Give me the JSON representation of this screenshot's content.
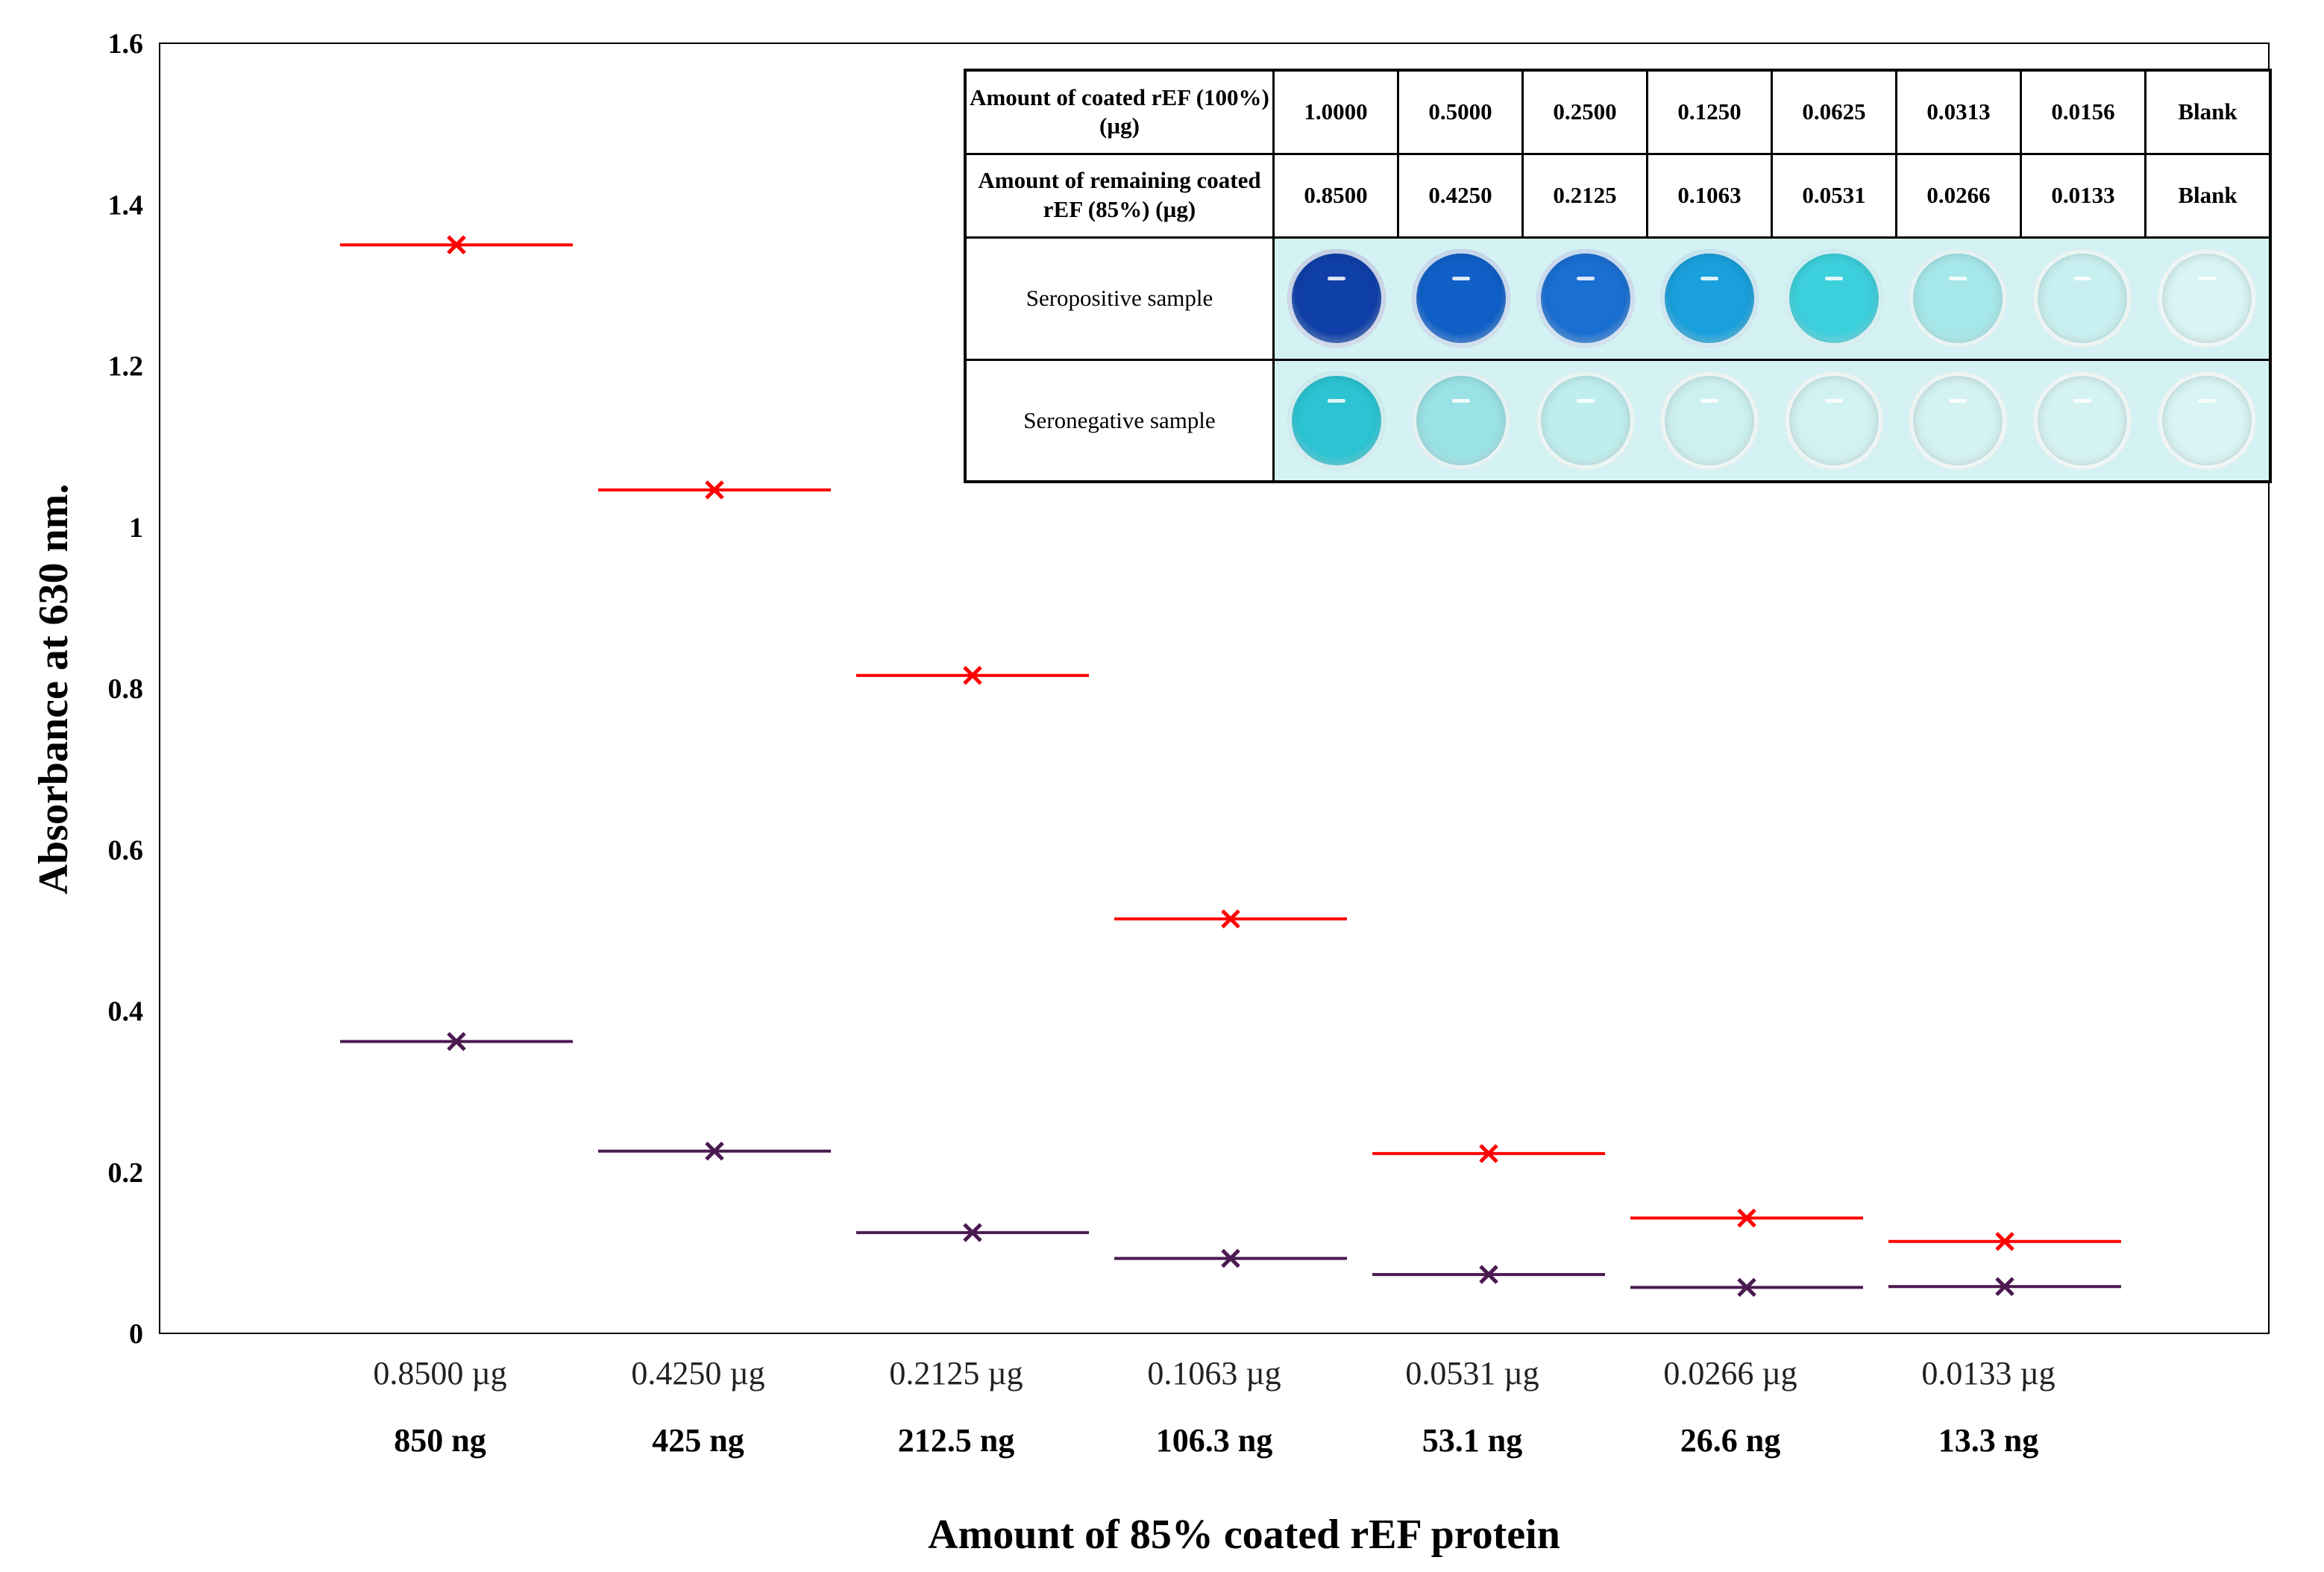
{
  "chart_data": {
    "type": "scatter",
    "ylabel": "Absorbance at 630 nm.",
    "xlabel": "Amount of 85% coated rEF protein",
    "ylim": [
      0,
      1.6
    ],
    "yticks": [
      "0",
      "0.2",
      "0.4",
      "0.6",
      "0.8",
      "1",
      "1.2",
      "1.4",
      "1.6"
    ],
    "categories": [
      "0.8500 µg",
      "0.4250 µg",
      "0.2125 µg",
      "0.1063 µg",
      "0.0531 µg",
      "0.0266 µg",
      "0.0133 µg"
    ],
    "categories_ng": [
      "850 ng",
      "425 ng",
      "212.5 ng",
      "106.3 ng",
      "53.1 ng",
      "26.6 ng",
      "13.3 ng"
    ],
    "series": [
      {
        "name": "Seropositive sample",
        "color": "#ff0000",
        "values": [
          1.35,
          1.046,
          0.816,
          0.514,
          0.223,
          0.143,
          0.114
        ]
      },
      {
        "name": "Seronegative sample",
        "color": "#4a1a50",
        "values": [
          0.362,
          0.226,
          0.125,
          0.093,
          0.073,
          0.057,
          0.058
        ]
      }
    ]
  },
  "inset_table": {
    "row1_label": "Amount of coated rEF (100%) (µg)",
    "row1_values": [
      "1.0000",
      "0.5000",
      "0.2500",
      "0.1250",
      "0.0625",
      "0.0313",
      "0.0156",
      "Blank"
    ],
    "row2_label": "Amount of remaining coated rEF (85%) (µg)",
    "row2_values": [
      "0.8500",
      "0.4250",
      "0.2125",
      "0.1063",
      "0.0531",
      "0.0266",
      "0.0133",
      "Blank"
    ],
    "row3_label": "Seropositive sample",
    "row4_label": "Seronegative sample",
    "positive_well_colors": [
      "#0f3fa8",
      "#1060c8",
      "#1a6fd2",
      "#1aa0dc",
      "#3cd0dc",
      "#a6e8ea",
      "#c8f0f0",
      "#d8f4f4"
    ],
    "negative_well_colors": [
      "#2cc4d2",
      "#9ae2e6",
      "#bfeeee",
      "#cdf1f1",
      "#d2f2f2",
      "#d4f2f2",
      "#d6f3f3",
      "#d8f4f4"
    ]
  }
}
